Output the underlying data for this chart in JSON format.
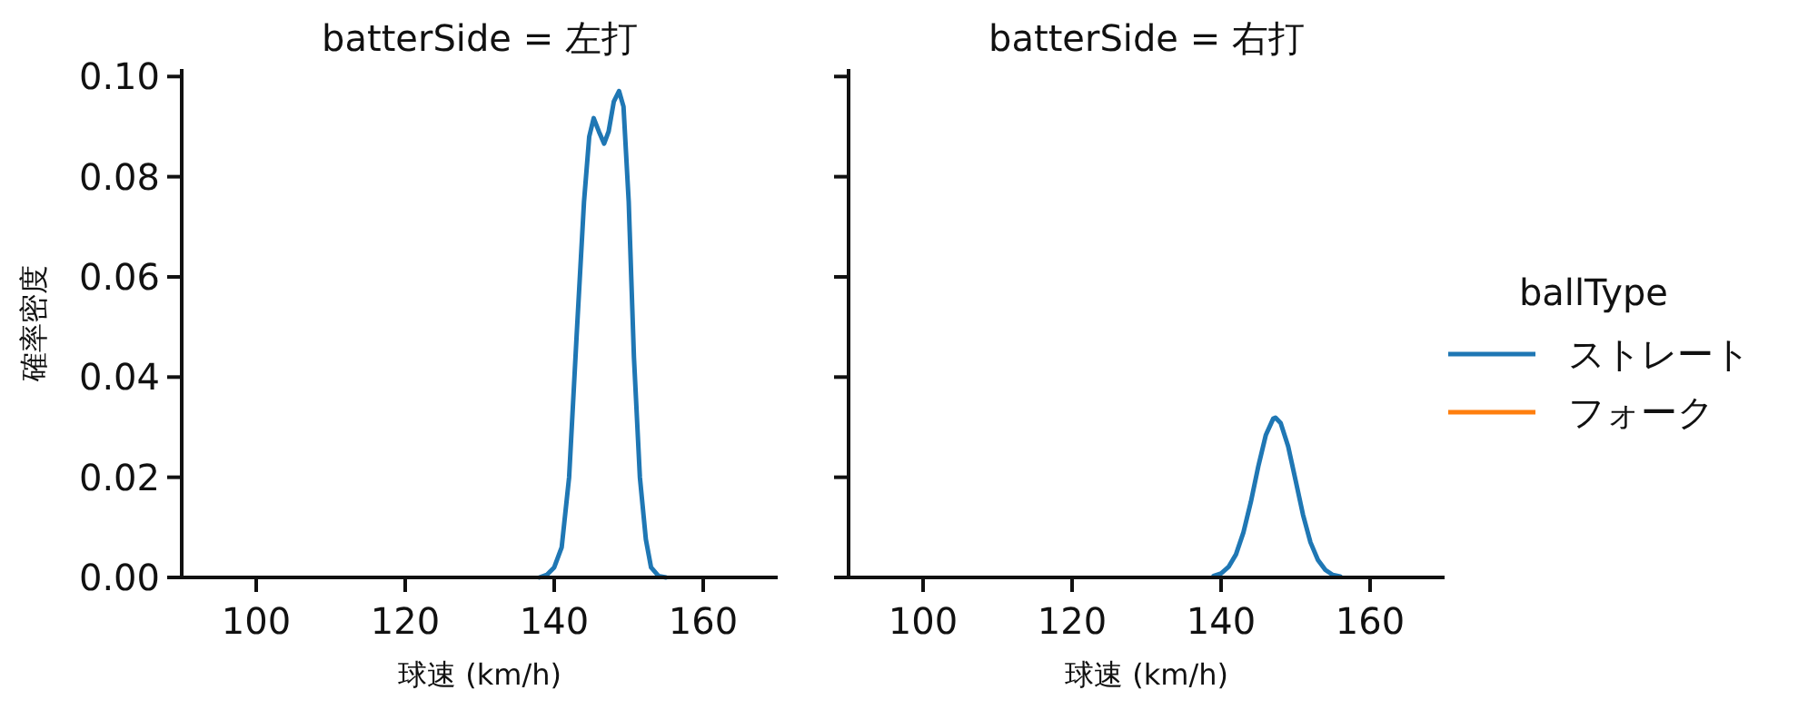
{
  "chart_data": [
    {
      "type": "line",
      "title": "batterSide = 左打",
      "xlabel": "球速 (km/h)",
      "ylabel": "確率密度",
      "xlim": [
        90,
        170
      ],
      "xticks": [
        100,
        120,
        140,
        160
      ],
      "ylim": [
        0,
        0.1015
      ],
      "yticks": [
        {
          "value": 0,
          "label": "0.00"
        },
        {
          "value": 0.02,
          "label": "0.02"
        },
        {
          "value": 0.04,
          "label": "0.04"
        },
        {
          "value": 0.06,
          "label": "0.06"
        },
        {
          "value": 0.08,
          "label": "0.08"
        },
        {
          "value": 0.1,
          "label": "0.10"
        }
      ],
      "grid": false,
      "legend": false,
      "series": [
        {
          "color": "#1f77b4",
          "x": [
            138,
            139,
            140,
            141,
            142,
            143,
            144,
            144.7,
            145.3,
            146,
            146.7,
            147.3,
            148,
            148.7,
            149.3,
            150,
            150.7,
            151.5,
            152.3,
            153,
            154,
            155
          ],
          "values": [
            0,
            0.0005,
            0.002,
            0.006,
            0.02,
            0.048,
            0.075,
            0.088,
            0.0917,
            0.089,
            0.0866,
            0.089,
            0.095,
            0.0971,
            0.094,
            0.075,
            0.044,
            0.02,
            0.0076,
            0.002,
            0.0003,
            0
          ]
        }
      ]
    },
    {
      "type": "line",
      "title": "batterSide = 右打",
      "xlabel": "球速 (km/h)",
      "xlim": [
        90,
        170
      ],
      "xticks": [
        100,
        120,
        140,
        160
      ],
      "ylim": [
        0,
        0.1015
      ],
      "yticks": [
        {
          "value": 0,
          "label": null
        },
        {
          "value": 0.02,
          "label": null
        },
        {
          "value": 0.04,
          "label": null
        },
        {
          "value": 0.06,
          "label": null
        },
        {
          "value": 0.08,
          "label": null
        },
        {
          "value": 0.1,
          "label": null
        }
      ],
      "tick_labels": "x",
      "grid": false,
      "legend": "right",
      "legend_title": "ballType",
      "series": [
        {
          "name": "ストレート",
          "color": "#1f77b4",
          "x": [
            139,
            140,
            141,
            142,
            143,
            144,
            145,
            146,
            147,
            147.3,
            148,
            149,
            150,
            151,
            152,
            153,
            154,
            155,
            156
          ],
          "values": [
            0.0003,
            0.0008,
            0.0021,
            0.0046,
            0.009,
            0.0151,
            0.0222,
            0.0284,
            0.0317,
            0.0319,
            0.0308,
            0.0262,
            0.0194,
            0.0125,
            0.007,
            0.0035,
            0.0015,
            0.0005,
            0.0002
          ]
        },
        {
          "name": "フォーク",
          "color": "#ff7f0e"
        }
      ]
    }
  ]
}
